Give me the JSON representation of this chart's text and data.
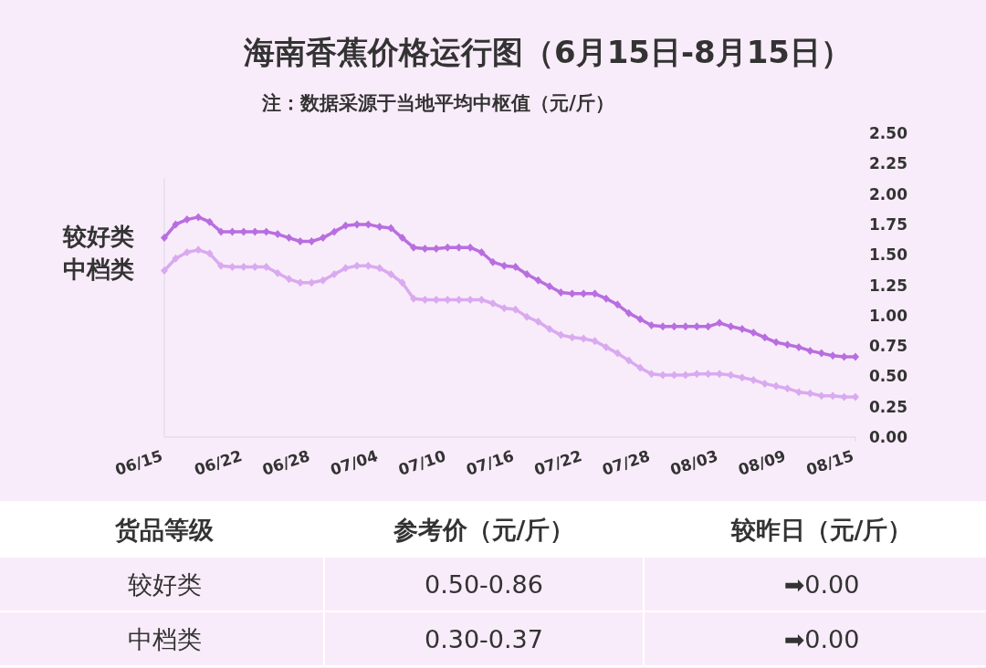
{
  "chart_data": [
    {
      "type": "line",
      "title": "海南香蕉价格运行图（6月15日-8月15日）",
      "subtitle": "注：数据采源于当地平均中枢值（元/斤）",
      "x": [
        "--06-15",
        "--06-16",
        "--06-17",
        "--06-18",
        "--06-19",
        "--06-20",
        "--06-21",
        "--06-22",
        "--06-23",
        "--06-24",
        "--06-25",
        "--06-26",
        "--06-27",
        "--06-28",
        "--06-29",
        "--06-30",
        "--07-01",
        "--07-02",
        "--07-03",
        "--07-04",
        "--07-05",
        "--07-06",
        "--07-07",
        "--07-08",
        "--07-09",
        "--07-10",
        "--07-11",
        "--07-12",
        "--07-13",
        "--07-14",
        "--07-15",
        "--07-16",
        "--07-17",
        "--07-18",
        "--07-19",
        "--07-20",
        "--07-21",
        "--07-22",
        "--07-23",
        "--07-24",
        "--07-25",
        "--07-26",
        "--07-27",
        "--07-28",
        "--07-29",
        "--07-30",
        "--07-31",
        "--08-01",
        "--08-02",
        "--08-03",
        "--08-04",
        "--08-05",
        "--08-06",
        "--08-07",
        "--08-08",
        "--08-09",
        "--08-10",
        "--08-11",
        "--08-12",
        "--08-13",
        "--08-14",
        "--08-15"
      ],
      "series": [
        {
          "name": "较好类",
          "color": "#b86ee0",
          "values": [
            1.64,
            1.75,
            1.79,
            1.81,
            1.77,
            1.69,
            1.69,
            1.69,
            1.69,
            1.69,
            1.67,
            1.64,
            1.61,
            1.61,
            1.64,
            1.69,
            1.74,
            1.75,
            1.75,
            1.73,
            1.72,
            1.64,
            1.56,
            1.55,
            1.55,
            1.56,
            1.56,
            1.56,
            1.52,
            1.44,
            1.41,
            1.4,
            1.34,
            1.29,
            1.24,
            1.19,
            1.18,
            1.18,
            1.18,
            1.14,
            1.09,
            1.02,
            0.97,
            0.92,
            0.91,
            0.91,
            0.91,
            0.91,
            0.91,
            0.94,
            0.91,
            0.89,
            0.86,
            0.82,
            0.78,
            0.76,
            0.74,
            0.71,
            0.69,
            0.67,
            0.66,
            0.66
          ]
        },
        {
          "name": "中档类",
          "color": "#d9aaf0",
          "values": [
            1.37,
            1.47,
            1.52,
            1.54,
            1.51,
            1.41,
            1.4,
            1.4,
            1.4,
            1.4,
            1.35,
            1.3,
            1.27,
            1.27,
            1.29,
            1.34,
            1.39,
            1.41,
            1.41,
            1.39,
            1.34,
            1.27,
            1.14,
            1.13,
            1.13,
            1.13,
            1.13,
            1.13,
            1.13,
            1.1,
            1.06,
            1.05,
            0.99,
            0.95,
            0.89,
            0.84,
            0.82,
            0.81,
            0.79,
            0.74,
            0.69,
            0.63,
            0.57,
            0.52,
            0.51,
            0.51,
            0.51,
            0.52,
            0.52,
            0.52,
            0.51,
            0.49,
            0.47,
            0.44,
            0.42,
            0.4,
            0.37,
            0.36,
            0.34,
            0.34,
            0.33,
            0.33
          ]
        }
      ],
      "ylim": [
        0,
        2.5
      ],
      "yticks": [
        {
          "value": 0,
          "label": "0.00"
        },
        {
          "value": 0.25,
          "label": "0.25"
        },
        {
          "value": 0.5,
          "label": "0.50"
        },
        {
          "value": 0.75,
          "label": "0.75"
        },
        {
          "value": 1,
          "label": "1.00"
        },
        {
          "value": 1.25,
          "label": "1.25"
        },
        {
          "value": 1.5,
          "label": "1.50"
        },
        {
          "value": 1.75,
          "label": "1.75"
        },
        {
          "value": 2,
          "label": "2.00"
        },
        {
          "value": 2.25,
          "label": "2.25"
        },
        {
          "value": 2.5,
          "label": "2.50"
        }
      ],
      "xticks": [
        {
          "value": "--06-15",
          "label": "06/15"
        },
        {
          "value": "--06-22",
          "label": "06/22"
        },
        {
          "value": "--06-28",
          "label": "06/28"
        },
        {
          "value": "--07-04",
          "label": "07/04"
        },
        {
          "value": "--07-10",
          "label": "07/10"
        },
        {
          "value": "--07-16",
          "label": "07/16"
        },
        {
          "value": "--07-22",
          "label": "07/22"
        },
        {
          "value": "--07-28",
          "label": "07/28"
        },
        {
          "value": "--08-03",
          "label": "08/03"
        },
        {
          "value": "--08-09",
          "label": "08/09"
        },
        {
          "value": "--08-15",
          "label": "08/15"
        }
      ],
      "xlim": [
        "--06-15",
        "--08-15"
      ],
      "marker": "diamond",
      "line_style": "solid"
    },
    {
      "type": "other",
      "annotations": [
        "货品等级",
        "参考价（元/斤）",
        "较昨日（元/斤）",
        "较好类",
        "0.50-0.86",
        "➡0.00",
        "中档类",
        "0.30-0.37",
        "➡0.00"
      ]
    }
  ]
}
